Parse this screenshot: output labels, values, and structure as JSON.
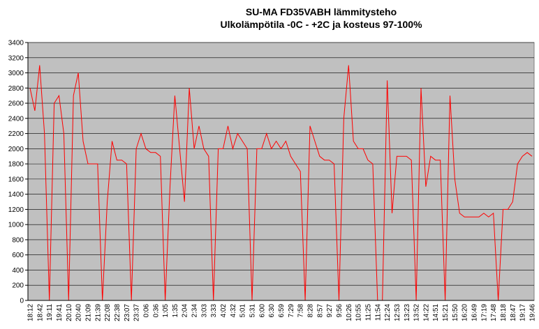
{
  "chart_data": {
    "type": "line",
    "title": "SU-MA FD35VABH lämmitysteho",
    "subtitle": "Ulkolämpötila  -0C - +2C ja kosteus 97-100%",
    "categories": [
      "18:12",
      null,
      "18:42",
      null,
      "19:11",
      null,
      "19:41",
      null,
      "20:10",
      null,
      "20:40",
      null,
      "21:09",
      null,
      "21:39",
      null,
      "22:08",
      null,
      "22:38",
      null,
      "23:07",
      null,
      "23:37",
      null,
      "0:06",
      null,
      "0:36",
      null,
      "1:05",
      null,
      "1:35",
      null,
      "2:04",
      null,
      "2:34",
      null,
      "3:03",
      null,
      "3:33",
      null,
      "4:02",
      null,
      "4:32",
      null,
      "5:01",
      null,
      "5:31",
      null,
      "6:00",
      null,
      "6:30",
      null,
      "6:59",
      null,
      "7:29",
      null,
      "7:58",
      null,
      "8:28",
      null,
      "8:57",
      null,
      "9:27",
      null,
      "9:56",
      null,
      "10:26",
      null,
      "10:55",
      null,
      "11:25",
      null,
      "11:54",
      null,
      "12:24",
      null,
      "12:53",
      null,
      "13:23",
      null,
      "13:52",
      null,
      "14:22",
      null,
      "14:51",
      null,
      "15:21",
      null,
      "15:50",
      null,
      "16:20",
      null,
      "16:49",
      null,
      "17:19",
      null,
      "17:48",
      null,
      "18:18",
      null,
      "18:47",
      null,
      "19:17",
      null,
      "19:46"
    ],
    "series": [
      {
        "name": "lämmitysteho",
        "color": "#ff0000",
        "values": [
          2800,
          2500,
          3100,
          2200,
          0,
          2600,
          2700,
          2200,
          0,
          2700,
          3000,
          2100,
          1800,
          1800,
          1800,
          0,
          1300,
          2100,
          1850,
          1850,
          1800,
          0,
          2000,
          2200,
          2000,
          1950,
          1950,
          1900,
          0,
          1500,
          2700,
          2000,
          1300,
          2800,
          2000,
          2300,
          2000,
          1900,
          0,
          2000,
          2000,
          2300,
          2000,
          2200,
          2100,
          2000,
          0,
          2000,
          2000,
          2200,
          2000,
          2100,
          2000,
          2100,
          1900,
          1800,
          1700,
          0,
          2300,
          2100,
          1900,
          1850,
          1850,
          1800,
          0,
          2400,
          3100,
          2100,
          2000,
          2000,
          1850,
          1800,
          0,
          0,
          2900,
          1150,
          1900,
          1900,
          1900,
          1850,
          0,
          2800,
          1500,
          1900,
          1850,
          1850,
          0,
          2700,
          1600,
          1150,
          1100,
          1100,
          1100,
          1100,
          1150,
          1100,
          1150,
          0,
          1200,
          1200,
          1300,
          1800,
          1900,
          1950,
          1900
        ]
      }
    ],
    "ylim": [
      0,
      3400
    ],
    "yticks": [
      0,
      200,
      400,
      600,
      800,
      1000,
      1200,
      1400,
      1600,
      1800,
      2000,
      2200,
      2400,
      2600,
      2800,
      3000,
      3200,
      3400
    ],
    "grid": true,
    "background": "#c0c0c0"
  }
}
